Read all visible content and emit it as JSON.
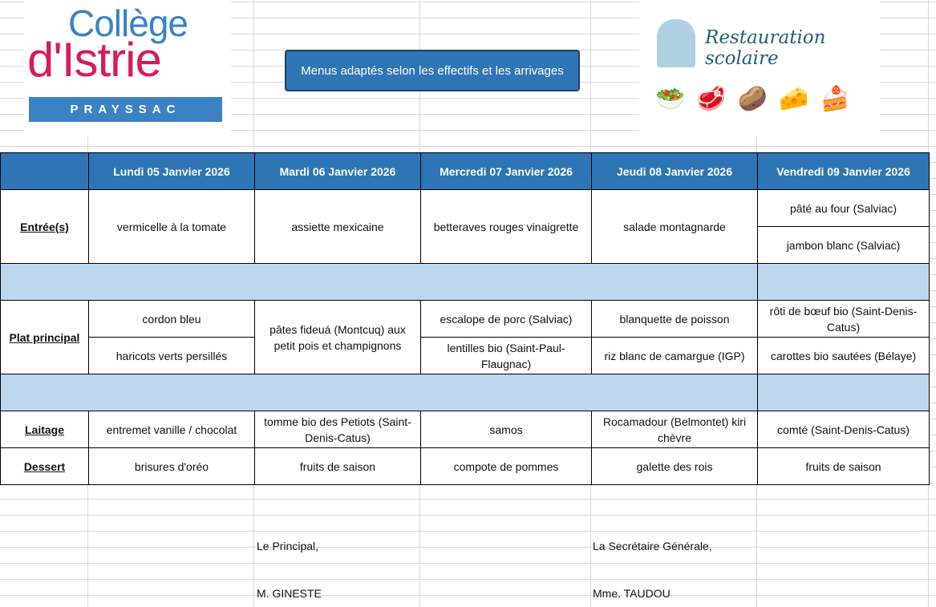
{
  "logo_left": {
    "line1": "Collège",
    "line2": "d'Istrie",
    "line3": "PRAYSSAC"
  },
  "banner": "Menus adaptés selon les effectifs et les arrivages",
  "logo_right": {
    "title": "Restauration scolaire",
    "icons": [
      "chef-hat-icon",
      "salad-plate-icon",
      "meat-fish-plate-icon",
      "potatoes-bowl-icon",
      "cheese-plate-icon",
      "cake-icon"
    ]
  },
  "colors": {
    "header": "#2e75b6",
    "band": "#bdd7ee"
  },
  "days": [
    "Lundi 05 Janvier 2026",
    "Mardi 06 Janvier 2026",
    "Mercredi 07 Janvier 2026",
    "Jeudi 08 Janvier 2026",
    "Vendredi 09 Janvier 2026"
  ],
  "labels": {
    "entree": "Entrée(s)",
    "plat": "Plat principal",
    "laitage": "Laitage",
    "dessert": "Dessert"
  },
  "entree": {
    "lundi": "vermicelle à la tomate",
    "mardi": "assiette mexicaine",
    "mercredi": "betteraves rouges vinaigrette",
    "jeudi": "salade montagnarde",
    "vendredi": [
      "pâté au four (Salviac)",
      "jambon blanc (Salviac)"
    ]
  },
  "plat": {
    "lundi": [
      "cordon bleu",
      "haricots verts persillés"
    ],
    "mardi": "pâtes fideuá (Montcuq) aux petit pois et champignons",
    "mercredi": [
      "escalope de porc (Salviac)",
      "lentilles bio (Saint-Paul-Flaugnac)"
    ],
    "jeudi": [
      "blanquette de poisson",
      "riz blanc de camargue (IGP)"
    ],
    "vendredi": [
      "rôti de bœuf bio (Saint-Denis-Catus)",
      "carottes bio sautées (Bélaye)"
    ]
  },
  "laitage": [
    "entremet vanille / chocolat",
    "tomme bio des Petiots (Saint-Denis-Catus)",
    "samos",
    "Rocamadour (Belmontet) kiri chèvre",
    "comté (Saint-Denis-Catus)"
  ],
  "dessert": [
    "brisures d'oréo",
    "fruits de saison",
    "compote de pommes",
    "galette des rois",
    "fruits de saison"
  ],
  "signatures": {
    "left_title": "Le Principal,",
    "left_name": "M. GINESTE",
    "right_title": "La Secrétaire Générale,",
    "right_name": "Mme. TAUDOU"
  }
}
